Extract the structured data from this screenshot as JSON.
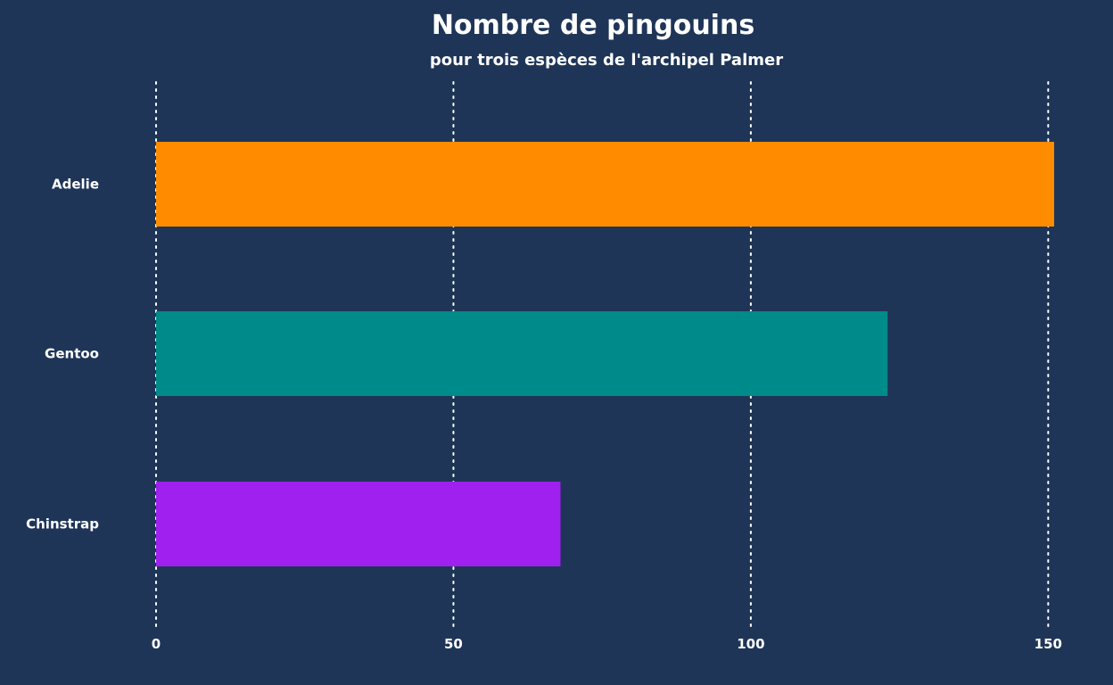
{
  "chart_data": {
    "type": "bar",
    "orientation": "horizontal",
    "title": "Nombre de pingouins",
    "subtitle": "pour trois espèces de l'archipel Palmer",
    "xlabel": "",
    "ylabel": "",
    "categories": [
      "Adelie",
      "Gentoo",
      "Chinstrap"
    ],
    "values": [
      151,
      123,
      68
    ],
    "colors": [
      "#ff8c00",
      "#008b8b",
      "#a020f0"
    ],
    "xlim": [
      0,
      151
    ],
    "xticks": [
      0,
      50,
      100,
      150
    ],
    "xtick_labels": [
      "0",
      "50",
      "100",
      "150"
    ],
    "grid": "vertical dotted",
    "legend": "none"
  },
  "theme": {
    "background": "#1e3557",
    "text_color": "#ffffff",
    "grid_color": "#ffffff"
  }
}
